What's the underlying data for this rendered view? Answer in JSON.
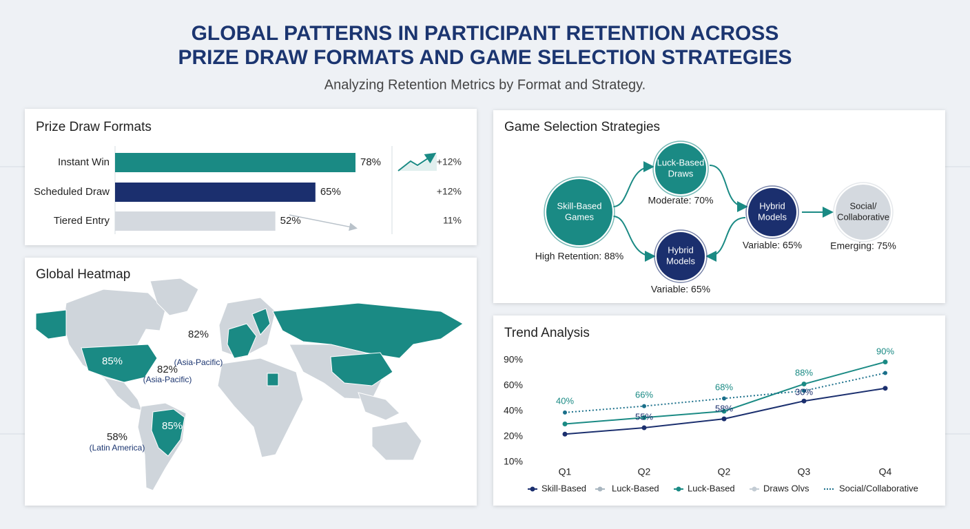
{
  "header": {
    "title_lines": [
      "GLOBAL PATTERNS IN PARTICIPANT RETENTION ACROSS",
      "PRIZE DRAW FORMATS AND GAME SELECTION STRATEGIES"
    ],
    "subtitle": "Analyzing Retention Metrics by Format and Strategy."
  },
  "chart_data": [
    {
      "type": "hbar",
      "title": "Prize Draw Formats",
      "categories": [
        "Instant Win",
        "Scheduled Draw",
        "Tiered Entry"
      ],
      "values": [
        78,
        65,
        52
      ],
      "value_labels": [
        "78%",
        "65%",
        "52%"
      ],
      "colors": [
        "#1a8a84",
        "#1b2f6e",
        "#d4d9df"
      ],
      "changes": [
        "+12%",
        "+12%",
        "11%"
      ]
    },
    {
      "type": "line",
      "title": "Trend Analysis",
      "categories": [
        "Q1",
        "Q2",
        "Q2",
        "Q3",
        "Q4"
      ],
      "yticks": [
        {
          "value": 90,
          "label": "90%"
        },
        {
          "value": 60,
          "label": "60%"
        },
        {
          "value": 40,
          "label": "40%"
        },
        {
          "value": 20,
          "label": "20%"
        },
        {
          "value": 10,
          "label": "10%"
        }
      ],
      "series": [
        {
          "name": "Skill-Based",
          "color": "#1b2f6e",
          "style": "solid",
          "values": [
            22,
            27,
            34,
            48,
            58
          ]
        },
        {
          "name": "Luck-Based",
          "color": "#1a8a84",
          "style": "solid",
          "values": [
            30,
            35,
            40,
            62,
            88
          ]
        },
        {
          "name": "Social/Collaborative",
          "color": "#1a6f8a",
          "style": "dotted",
          "values": [
            39,
            44,
            50,
            56,
            75
          ]
        }
      ],
      "annotations": [
        "40%",
        "66%",
        "68%",
        "88%",
        "90%",
        "55%",
        "58%",
        "30%"
      ],
      "legend": [
        {
          "name": "Skill-Based",
          "color": "#1b2f6e",
          "style": "solid"
        },
        {
          "name": "Luck-Based",
          "color": "#a9b6c0",
          "style": "solid"
        },
        {
          "name": "Luck-Based",
          "color": "#1a8a84",
          "style": "solid"
        },
        {
          "name": "Draws Olvs",
          "color": "#c3ccd4",
          "style": "solid"
        },
        {
          "name": "Social/Collaborative",
          "color": "#1a6f8a",
          "style": "dotted"
        }
      ]
    }
  ],
  "diagram": {
    "title": "Game Selection Strategies",
    "nodes": [
      {
        "lines": [
          "Skill-Based",
          "Games"
        ],
        "caption": "High Retention: 88%"
      },
      {
        "lines": [
          "Luck-Based",
          "Draws"
        ],
        "caption": "Moderate: 70%"
      },
      {
        "lines": [
          "Hybrid",
          "Models"
        ],
        "caption": "Variable: 65%"
      },
      {
        "lines": [
          "Hybrid",
          "Models"
        ],
        "caption": "Variable: 65%"
      },
      {
        "lines": [
          "Social/",
          "Collaborative"
        ],
        "caption": "Emerging: 75%"
      }
    ]
  },
  "heatmap": {
    "title": "Global Heatmap",
    "labels": [
      {
        "value": "85%"
      },
      {
        "value": "82%",
        "region": "(Asia-Pacific)"
      },
      {
        "value": "82%",
        "region": "(Asia-Pacific)"
      },
      {
        "value": "85%"
      },
      {
        "value": "58%",
        "region": "(Latin America)"
      }
    ]
  }
}
